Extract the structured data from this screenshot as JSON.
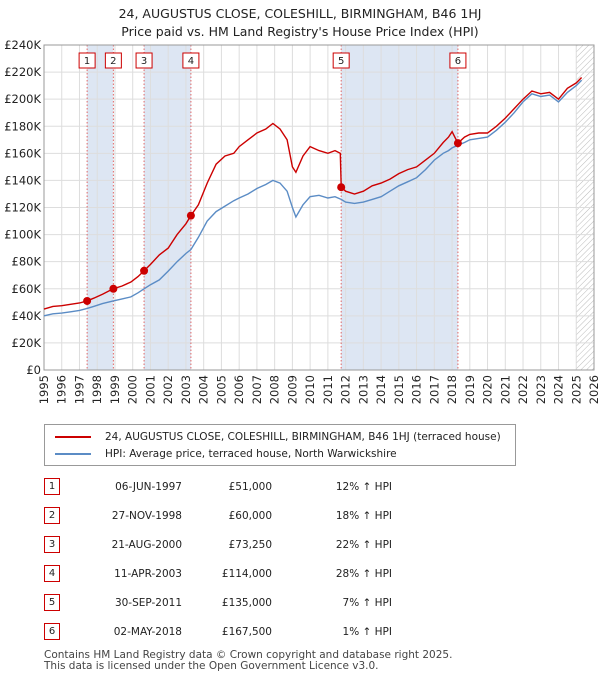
{
  "chart_data": {
    "type": "line",
    "title": "24, AUGUSTUS CLOSE, COLESHILL, BIRMINGHAM, B46 1HJ",
    "subtitle": "Price paid vs. HM Land Registry's House Price Index (HPI)",
    "x_range": [
      1995,
      2026
    ],
    "y_range": [
      0,
      240000
    ],
    "y_ticks": [
      {
        "value": 0,
        "label": "£0"
      },
      {
        "value": 20000,
        "label": "£20K"
      },
      {
        "value": 40000,
        "label": "£40K"
      },
      {
        "value": 60000,
        "label": "£60K"
      },
      {
        "value": 80000,
        "label": "£80K"
      },
      {
        "value": 100000,
        "label": "£100K"
      },
      {
        "value": 120000,
        "label": "£120K"
      },
      {
        "value": 140000,
        "label": "£140K"
      },
      {
        "value": 160000,
        "label": "£160K"
      },
      {
        "value": 180000,
        "label": "£180K"
      },
      {
        "value": 200000,
        "label": "£200K"
      },
      {
        "value": 220000,
        "label": "£220K"
      },
      {
        "value": 240000,
        "label": "£240K"
      }
    ],
    "x_ticks": [
      "1995",
      "1996",
      "1997",
      "1998",
      "1999",
      "2000",
      "2001",
      "2002",
      "2003",
      "2004",
      "2005",
      "2006",
      "2007",
      "2008",
      "2009",
      "2010",
      "2011",
      "2012",
      "2013",
      "2014",
      "2015",
      "2016",
      "2017",
      "2018",
      "2019",
      "2020",
      "2021",
      "2022",
      "2023",
      "2024",
      "2025",
      "2026"
    ],
    "series": [
      {
        "name": "24, AUGUSTUS CLOSE, COLESHILL, BIRMINGHAM, B46 1HJ (terraced house)",
        "color": "#cc0000",
        "points": [
          [
            1995.0,
            45000
          ],
          [
            1995.5,
            47000
          ],
          [
            1996.0,
            47500
          ],
          [
            1996.5,
            48500
          ],
          [
            1997.0,
            49500
          ],
          [
            1997.43,
            51000
          ],
          [
            1997.8,
            53000
          ],
          [
            1998.3,
            56000
          ],
          [
            1998.9,
            60000
          ],
          [
            1999.4,
            62000
          ],
          [
            1999.9,
            65000
          ],
          [
            2000.3,
            69000
          ],
          [
            2000.64,
            73250
          ],
          [
            2001.0,
            78000
          ],
          [
            2001.5,
            85000
          ],
          [
            2002.0,
            90000
          ],
          [
            2002.5,
            100000
          ],
          [
            2003.0,
            108000
          ],
          [
            2003.28,
            114000
          ],
          [
            2003.7,
            122000
          ],
          [
            2004.2,
            138000
          ],
          [
            2004.7,
            152000
          ],
          [
            2005.2,
            158000
          ],
          [
            2005.7,
            160000
          ],
          [
            2006.0,
            165000
          ],
          [
            2006.5,
            170000
          ],
          [
            2007.0,
            175000
          ],
          [
            2007.5,
            178000
          ],
          [
            2007.9,
            182000
          ],
          [
            2008.3,
            178000
          ],
          [
            2008.7,
            170000
          ],
          [
            2009.0,
            150000
          ],
          [
            2009.2,
            146000
          ],
          [
            2009.6,
            158000
          ],
          [
            2010.0,
            165000
          ],
          [
            2010.5,
            162000
          ],
          [
            2011.0,
            160000
          ],
          [
            2011.4,
            162000
          ],
          [
            2011.7,
            160000
          ],
          [
            2011.75,
            135000
          ],
          [
            2012.0,
            132000
          ],
          [
            2012.5,
            130000
          ],
          [
            2013.0,
            132000
          ],
          [
            2013.5,
            136000
          ],
          [
            2014.0,
            138000
          ],
          [
            2014.5,
            141000
          ],
          [
            2015.0,
            145000
          ],
          [
            2015.5,
            148000
          ],
          [
            2016.0,
            150000
          ],
          [
            2016.5,
            155000
          ],
          [
            2017.0,
            160000
          ],
          [
            2017.5,
            168000
          ],
          [
            2017.8,
            172000
          ],
          [
            2018.0,
            176000
          ],
          [
            2018.33,
            167500
          ],
          [
            2018.7,
            172000
          ],
          [
            2019.0,
            174000
          ],
          [
            2019.5,
            175000
          ],
          [
            2020.0,
            175000
          ],
          [
            2020.5,
            180000
          ],
          [
            2021.0,
            186000
          ],
          [
            2021.5,
            193000
          ],
          [
            2022.0,
            200000
          ],
          [
            2022.5,
            206000
          ],
          [
            2023.0,
            204000
          ],
          [
            2023.5,
            205000
          ],
          [
            2024.0,
            200000
          ],
          [
            2024.5,
            208000
          ],
          [
            2025.0,
            212000
          ],
          [
            2025.3,
            216000
          ]
        ]
      },
      {
        "name": "HPI: Average price, terraced house, North Warwickshire",
        "color": "#5b8cc5",
        "points": [
          [
            1995.0,
            40000
          ],
          [
            1995.5,
            41500
          ],
          [
            1996.0,
            42000
          ],
          [
            1996.5,
            43000
          ],
          [
            1997.0,
            44000
          ],
          [
            1997.43,
            45500
          ],
          [
            1997.8,
            47000
          ],
          [
            1998.3,
            49000
          ],
          [
            1998.9,
            51000
          ],
          [
            1999.4,
            52500
          ],
          [
            1999.9,
            54000
          ],
          [
            2000.3,
            57000
          ],
          [
            2000.64,
            60000
          ],
          [
            2001.0,
            63000
          ],
          [
            2001.5,
            66500
          ],
          [
            2002.0,
            73000
          ],
          [
            2002.5,
            80000
          ],
          [
            2003.0,
            86000
          ],
          [
            2003.28,
            89000
          ],
          [
            2003.7,
            98000
          ],
          [
            2004.2,
            110000
          ],
          [
            2004.7,
            117000
          ],
          [
            2005.2,
            121000
          ],
          [
            2005.7,
            125000
          ],
          [
            2006.0,
            127000
          ],
          [
            2006.5,
            130000
          ],
          [
            2007.0,
            134000
          ],
          [
            2007.5,
            137000
          ],
          [
            2007.9,
            140000
          ],
          [
            2008.3,
            138000
          ],
          [
            2008.7,
            132000
          ],
          [
            2009.0,
            120000
          ],
          [
            2009.2,
            113000
          ],
          [
            2009.6,
            122000
          ],
          [
            2010.0,
            128000
          ],
          [
            2010.5,
            129000
          ],
          [
            2011.0,
            127000
          ],
          [
            2011.4,
            128000
          ],
          [
            2011.75,
            126000
          ],
          [
            2012.0,
            124000
          ],
          [
            2012.5,
            123000
          ],
          [
            2013.0,
            124000
          ],
          [
            2013.5,
            126000
          ],
          [
            2014.0,
            128000
          ],
          [
            2014.5,
            132000
          ],
          [
            2015.0,
            136000
          ],
          [
            2015.5,
            139000
          ],
          [
            2016.0,
            142000
          ],
          [
            2016.5,
            148000
          ],
          [
            2017.0,
            155000
          ],
          [
            2017.5,
            160000
          ],
          [
            2017.8,
            162000
          ],
          [
            2018.0,
            164000
          ],
          [
            2018.33,
            166000
          ],
          [
            2018.7,
            168000
          ],
          [
            2019.0,
            170000
          ],
          [
            2019.5,
            171000
          ],
          [
            2020.0,
            172000
          ],
          [
            2020.5,
            177000
          ],
          [
            2021.0,
            183000
          ],
          [
            2021.5,
            190000
          ],
          [
            2022.0,
            198000
          ],
          [
            2022.5,
            204000
          ],
          [
            2023.0,
            202000
          ],
          [
            2023.5,
            203000
          ],
          [
            2024.0,
            198000
          ],
          [
            2024.5,
            205000
          ],
          [
            2025.0,
            210000
          ],
          [
            2025.3,
            214000
          ]
        ]
      }
    ],
    "sale_markers": [
      {
        "id": "1",
        "x": 1997.43,
        "price": 51000
      },
      {
        "id": "2",
        "x": 1998.91,
        "price": 60000
      },
      {
        "id": "3",
        "x": 2000.64,
        "price": 73250
      },
      {
        "id": "4",
        "x": 2003.28,
        "price": 114000
      },
      {
        "id": "5",
        "x": 2011.75,
        "price": 135000
      },
      {
        "id": "6",
        "x": 2018.33,
        "price": 167500
      }
    ],
    "shaded_ranges": [
      [
        1997.43,
        1998.91
      ],
      [
        2000.64,
        2003.28
      ],
      [
        2011.75,
        2018.33
      ]
    ],
    "future_hatch_from": 2025.0
  },
  "legend": {
    "property_label": "24, AUGUSTUS CLOSE, COLESHILL, BIRMINGHAM, B46 1HJ (terraced house)",
    "hpi_label": "HPI: Average price, terraced house, North Warwickshire",
    "property_color": "#cc0000",
    "hpi_color": "#5b8cc5"
  },
  "sales": [
    {
      "num": "1",
      "date": "06-JUN-1997",
      "price": "£51,000",
      "hpi": "12% ↑ HPI"
    },
    {
      "num": "2",
      "date": "27-NOV-1998",
      "price": "£60,000",
      "hpi": "18% ↑ HPI"
    },
    {
      "num": "3",
      "date": "21-AUG-2000",
      "price": "£73,250",
      "hpi": "22% ↑ HPI"
    },
    {
      "num": "4",
      "date": "11-APR-2003",
      "price": "£114,000",
      "hpi": "28% ↑ HPI"
    },
    {
      "num": "5",
      "date": "30-SEP-2011",
      "price": "£135,000",
      "hpi": "7% ↑ HPI"
    },
    {
      "num": "6",
      "date": "02-MAY-2018",
      "price": "£167,500",
      "hpi": "1% ↑ HPI"
    }
  ],
  "footer": {
    "line1": "Contains HM Land Registry data © Crown copyright and database right 2025.",
    "line2": "This data is licensed under the Open Government Licence v3.0."
  }
}
